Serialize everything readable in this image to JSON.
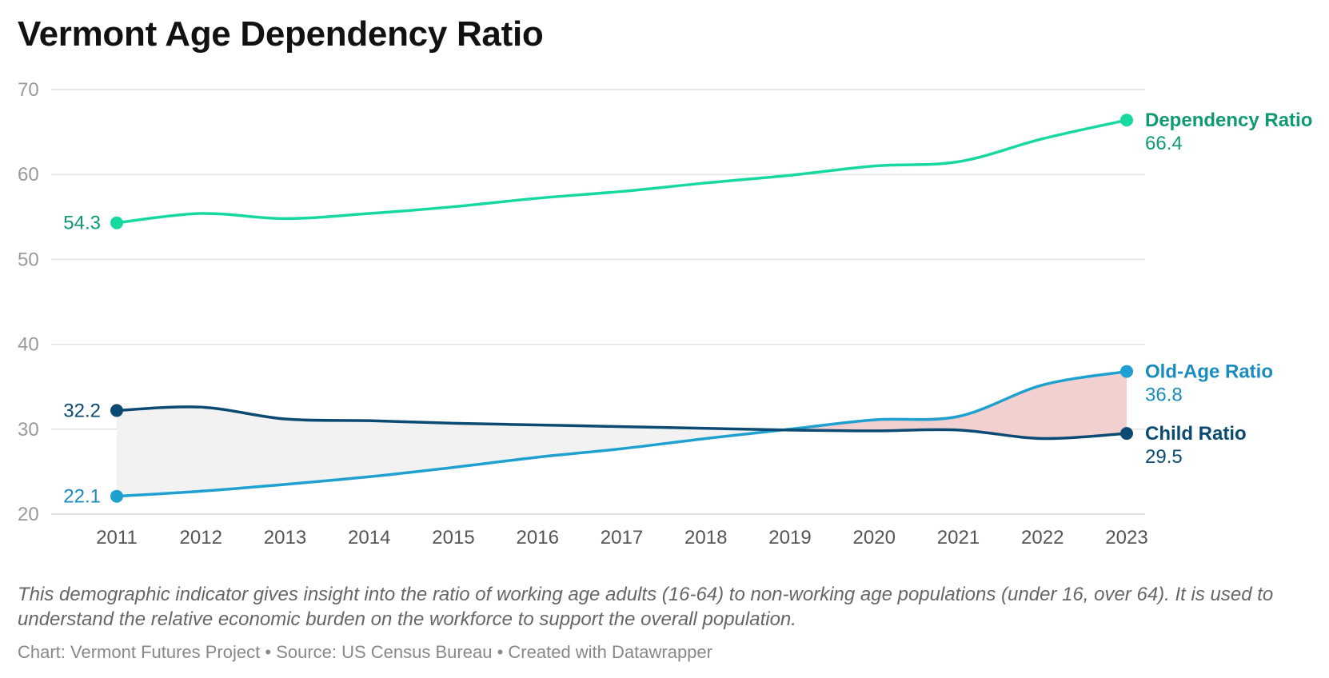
{
  "title": "Vermont Age Dependency Ratio",
  "description": "This demographic indicator gives insight into the ratio of working age adults (16-64) to non-working age populations (under 16, over 64). It is used to understand the relative economic burden on the workforce to support the overall population.",
  "footer": {
    "chart_credit": "Chart: Vermont Futures Project",
    "source": "Source: US Census Bureau",
    "created": "Created with Datawrapper",
    "separator": "•"
  },
  "colors": {
    "dependency": "#17d9a0",
    "dependency_label": "#0f9a70",
    "old_age": "#1ea0d0",
    "old_age_label": "#1a8cbf",
    "child": "#0b4a72",
    "child_label": "#0b4a72",
    "fill_child_above": "#f2f2f2",
    "fill_old_above": "#f3d0d0",
    "grid": "#e2e2e2",
    "tick": "#999999"
  },
  "chart_data": {
    "type": "line",
    "title": "Vermont Age Dependency Ratio",
    "xlabel": "",
    "ylabel": "",
    "ylim": [
      20,
      70
    ],
    "yticks": [
      20,
      30,
      40,
      50,
      60,
      70
    ],
    "grid": true,
    "x": [
      2011,
      2012,
      2013,
      2014,
      2015,
      2016,
      2017,
      2018,
      2019,
      2020,
      2021,
      2022,
      2023
    ],
    "x_labels": [
      "2011",
      "2012",
      "2013",
      "2014",
      "2015",
      "2016",
      "2017",
      "2018",
      "2019",
      "2020",
      "2021",
      "2022",
      "2023"
    ],
    "series": [
      {
        "key": "dependency",
        "name": "Dependency Ratio",
        "values": [
          54.3,
          55.4,
          54.8,
          55.4,
          56.2,
          57.2,
          58.0,
          59.0,
          59.9,
          61.0,
          61.5,
          64.2,
          66.4
        ],
        "start_label": "54.3",
        "end_label": "66.4"
      },
      {
        "key": "old_age",
        "name": "Old-Age Ratio",
        "values": [
          22.1,
          22.7,
          23.5,
          24.4,
          25.5,
          26.7,
          27.7,
          28.9,
          30.0,
          31.1,
          31.5,
          35.2,
          36.8
        ],
        "start_label": "22.1",
        "end_label": "36.8"
      },
      {
        "key": "child",
        "name": "Child Ratio",
        "values": [
          32.2,
          32.6,
          31.2,
          31.0,
          30.7,
          30.5,
          30.3,
          30.1,
          29.9,
          29.8,
          29.9,
          28.9,
          29.5
        ],
        "start_label": "32.2",
        "end_label": "29.5"
      }
    ],
    "legend": "direct labels at line ends"
  }
}
